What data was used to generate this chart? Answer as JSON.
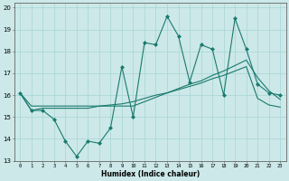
{
  "xlabel": "Humidex (Indice chaleur)",
  "bg_color": "#cce8e8",
  "grid_color": "#a8d4d4",
  "line_color": "#1a7a6e",
  "xlim": [
    -0.5,
    23.5
  ],
  "ylim": [
    13,
    20.2
  ],
  "xticks": [
    0,
    1,
    2,
    3,
    4,
    5,
    6,
    7,
    8,
    9,
    10,
    11,
    12,
    13,
    14,
    15,
    16,
    17,
    18,
    19,
    20,
    21,
    22,
    23
  ],
  "yticks": [
    13,
    14,
    15,
    16,
    17,
    18,
    19,
    20
  ],
  "line1_x": [
    0,
    1,
    2,
    3,
    4,
    5,
    6,
    7,
    8,
    9,
    10,
    11,
    12,
    13,
    14,
    15,
    16,
    17,
    18,
    19,
    20,
    21,
    22,
    23
  ],
  "line1_y": [
    16.1,
    15.3,
    15.3,
    14.9,
    13.9,
    13.2,
    13.9,
    13.8,
    14.5,
    17.3,
    15.0,
    18.4,
    18.3,
    19.6,
    18.7,
    16.6,
    18.3,
    18.1,
    16.0,
    19.5,
    18.1,
    16.5,
    16.1,
    16.0
  ],
  "line2_x": [
    0,
    1,
    2,
    3,
    4,
    5,
    6,
    7,
    8,
    9,
    10,
    11,
    12,
    13,
    14,
    15,
    16,
    17,
    18,
    19,
    20,
    21,
    22,
    23
  ],
  "line2_y": [
    16.1,
    15.5,
    15.5,
    15.5,
    15.5,
    15.5,
    15.5,
    15.5,
    15.5,
    15.5,
    15.5,
    15.7,
    15.9,
    16.1,
    16.3,
    16.5,
    16.65,
    16.9,
    17.1,
    17.35,
    17.6,
    16.8,
    16.2,
    15.8
  ],
  "line3_x": [
    0,
    1,
    2,
    3,
    4,
    5,
    6,
    7,
    8,
    9,
    10,
    11,
    12,
    13,
    14,
    15,
    16,
    17,
    18,
    19,
    20,
    21,
    22,
    23
  ],
  "line3_y": [
    16.1,
    15.3,
    15.4,
    15.4,
    15.4,
    15.4,
    15.4,
    15.5,
    15.55,
    15.6,
    15.7,
    15.85,
    16.0,
    16.1,
    16.25,
    16.4,
    16.55,
    16.75,
    16.9,
    17.1,
    17.3,
    15.85,
    15.55,
    15.45
  ]
}
